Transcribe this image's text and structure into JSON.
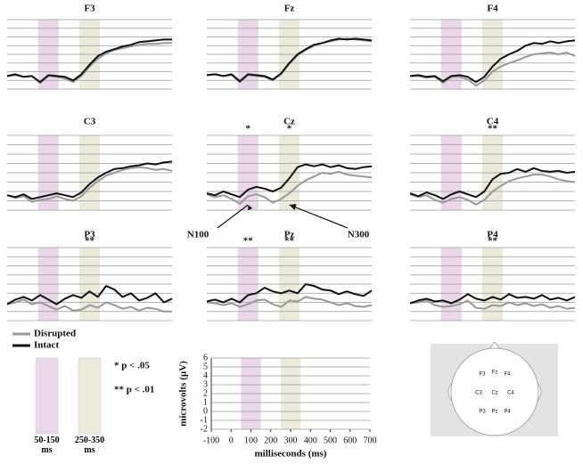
{
  "chart_data": [
    {
      "type": "line",
      "title": "F3",
      "x": [
        -100,
        -60,
        -20,
        20,
        60,
        100,
        140,
        180,
        220,
        260,
        300,
        340,
        380,
        420,
        460,
        500,
        540,
        580,
        620,
        660,
        700
      ],
      "series": [
        {
          "name": "Disrupted",
          "color": "#999999",
          "values": [
            -0.5,
            -0.4,
            -0.6,
            -0.5,
            -1.3,
            -0.5,
            -0.6,
            -0.8,
            -1.2,
            -0.5,
            0.6,
            1.5,
            2.1,
            2.5,
            2.7,
            2.9,
            3.1,
            3.2,
            3.2,
            3.3,
            3.3
          ]
        },
        {
          "name": "Intact",
          "color": "#111111",
          "values": [
            -0.5,
            -0.3,
            -0.6,
            -0.5,
            -1.2,
            -0.4,
            -0.5,
            -0.6,
            -1.0,
            -0.3,
            0.8,
            1.8,
            2.3,
            2.6,
            2.9,
            3.1,
            3.4,
            3.5,
            3.6,
            3.7,
            3.7
          ]
        }
      ]
    },
    {
      "type": "line",
      "title": "Fz",
      "x": [
        -100,
        -60,
        -20,
        20,
        60,
        100,
        140,
        180,
        220,
        260,
        300,
        340,
        380,
        420,
        460,
        500,
        540,
        580,
        620,
        660,
        700
      ],
      "series": [
        {
          "name": "Disrupted",
          "color": "#999999",
          "values": [
            -0.4,
            -0.3,
            -0.5,
            -0.4,
            -1.2,
            -0.4,
            -0.5,
            -0.6,
            -1.0,
            -0.3,
            0.9,
            1.9,
            2.5,
            3.0,
            3.3,
            3.5,
            3.7,
            3.8,
            3.7,
            3.6,
            3.5
          ]
        },
        {
          "name": "Intact",
          "color": "#111111",
          "values": [
            -0.4,
            -0.3,
            -0.5,
            -0.3,
            -1.1,
            -0.3,
            -0.4,
            -0.5,
            -0.9,
            -0.2,
            1.0,
            2.0,
            2.6,
            3.1,
            3.3,
            3.6,
            3.8,
            3.7,
            3.8,
            3.7,
            3.6
          ]
        }
      ]
    },
    {
      "type": "line",
      "title": "F4",
      "x": [
        -100,
        -60,
        -20,
        20,
        60,
        100,
        140,
        180,
        220,
        260,
        300,
        340,
        380,
        420,
        460,
        500,
        540,
        580,
        620,
        660,
        700
      ],
      "series": [
        {
          "name": "Disrupted",
          "color": "#999999",
          "values": [
            -0.5,
            -0.5,
            -0.7,
            -0.6,
            -1.3,
            -0.6,
            -0.6,
            -0.9,
            -1.6,
            -1.0,
            0.0,
            0.6,
            1.0,
            1.3,
            1.7,
            2.0,
            2.1,
            2.2,
            2.0,
            2.2,
            1.8
          ]
        },
        {
          "name": "Intact",
          "color": "#111111",
          "values": [
            -0.5,
            -0.4,
            -0.6,
            -0.5,
            -1.1,
            -0.5,
            -0.4,
            -0.6,
            -1.2,
            -0.6,
            0.6,
            1.5,
            2.0,
            2.4,
            3.0,
            3.3,
            3.2,
            3.5,
            3.3,
            3.5,
            3.6
          ]
        }
      ]
    },
    {
      "type": "line",
      "title": "C3",
      "x": [
        -100,
        -60,
        -20,
        20,
        60,
        100,
        140,
        180,
        220,
        260,
        300,
        340,
        380,
        420,
        460,
        500,
        540,
        580,
        620,
        660,
        700
      ],
      "series": [
        {
          "name": "Disrupted",
          "color": "#999999",
          "values": [
            -0.4,
            -0.7,
            -0.5,
            -1.1,
            -0.9,
            -0.8,
            -0.5,
            -0.8,
            -1.0,
            -0.5,
            0.4,
            1.1,
            1.7,
            2.0,
            2.3,
            2.5,
            2.6,
            2.5,
            2.3,
            2.4,
            2.2
          ]
        },
        {
          "name": "Intact",
          "color": "#111111",
          "values": [
            -0.4,
            -0.6,
            -0.3,
            -0.8,
            -0.6,
            -0.4,
            -0.2,
            -0.4,
            -0.6,
            -0.1,
            0.8,
            1.5,
            2.0,
            2.4,
            2.5,
            2.7,
            2.8,
            3.0,
            2.9,
            3.1,
            3.2
          ]
        }
      ]
    },
    {
      "type": "line",
      "title": "Cz",
      "significance": [
        "*",
        "*"
      ],
      "annotations": [
        "N100",
        "N300"
      ],
      "x": [
        -100,
        -60,
        -20,
        20,
        60,
        100,
        140,
        180,
        220,
        260,
        300,
        340,
        380,
        420,
        460,
        500,
        540,
        580,
        620,
        660,
        700
      ],
      "series": [
        {
          "name": "Disrupted",
          "color": "#999999",
          "values": [
            -0.3,
            -0.6,
            -0.4,
            -0.8,
            -1.3,
            -0.5,
            -0.3,
            -0.6,
            -1.2,
            -0.8,
            -0.2,
            0.6,
            1.2,
            1.6,
            2.0,
            1.9,
            2.1,
            1.8,
            1.7,
            1.6,
            1.5
          ]
        },
        {
          "name": "Intact",
          "color": "#111111",
          "values": [
            -0.2,
            -0.4,
            0.0,
            -0.3,
            -0.6,
            0.2,
            0.5,
            0.3,
            0.0,
            0.4,
            1.4,
            2.6,
            2.9,
            2.7,
            2.9,
            2.6,
            2.8,
            2.5,
            2.4,
            2.6,
            2.7
          ]
        }
      ]
    },
    {
      "type": "line",
      "title": "C4",
      "significance": [
        null,
        "**"
      ],
      "x": [
        -100,
        -60,
        -20,
        20,
        60,
        100,
        140,
        180,
        220,
        260,
        300,
        340,
        380,
        420,
        460,
        500,
        540,
        580,
        620,
        660,
        700
      ],
      "series": [
        {
          "name": "Disrupted",
          "color": "#999999",
          "values": [
            -0.3,
            -0.6,
            -0.4,
            -0.9,
            -1.2,
            -0.8,
            -0.6,
            -0.9,
            -1.4,
            -0.9,
            0.0,
            0.6,
            1.1,
            1.4,
            1.6,
            1.8,
            1.8,
            1.6,
            1.3,
            1.1,
            1.0
          ]
        },
        {
          "name": "Intact",
          "color": "#111111",
          "values": [
            -0.2,
            -0.5,
            -0.1,
            -0.4,
            -0.8,
            -0.3,
            0.0,
            -0.3,
            -0.6,
            0.0,
            1.3,
            1.9,
            2.0,
            2.4,
            2.1,
            2.5,
            2.2,
            2.1,
            2.2,
            2.0,
            2.1
          ]
        }
      ]
    },
    {
      "type": "line",
      "title": "P3",
      "significance": [
        null,
        "**"
      ],
      "x": [
        -100,
        -60,
        -20,
        20,
        60,
        100,
        140,
        180,
        220,
        260,
        300,
        340,
        380,
        420,
        460,
        500,
        540,
        580,
        620,
        660,
        700
      ],
      "series": [
        {
          "name": "Disrupted",
          "color": "#999999",
          "values": [
            -0.2,
            0.0,
            0.3,
            -0.2,
            0.0,
            -0.4,
            -0.8,
            -0.4,
            -0.9,
            -0.8,
            -0.3,
            -0.6,
            0.0,
            -0.3,
            -0.7,
            -0.5,
            -0.9,
            -0.6,
            -0.7,
            -1.0,
            -1.0
          ]
        },
        {
          "name": "Intact",
          "color": "#111111",
          "values": [
            -0.2,
            0.3,
            0.6,
            0.2,
            0.8,
            0.3,
            -0.2,
            0.4,
            0.8,
            0.5,
            1.2,
            0.6,
            1.8,
            1.4,
            0.6,
            1.0,
            0.2,
            0.5,
            1.0,
            0.0,
            0.4
          ]
        }
      ]
    },
    {
      "type": "line",
      "title": "Pz",
      "significance": [
        "**",
        "**"
      ],
      "x": [
        -100,
        -60,
        -20,
        20,
        60,
        100,
        140,
        180,
        220,
        260,
        300,
        340,
        380,
        420,
        460,
        500,
        540,
        580,
        620,
        660,
        700
      ],
      "series": [
        {
          "name": "Disrupted",
          "color": "#999999",
          "values": [
            0.0,
            -0.1,
            -0.3,
            -0.1,
            -0.5,
            -0.2,
            0.2,
            0.3,
            -0.2,
            -0.5,
            0.2,
            0.1,
            0.6,
            0.4,
            0.3,
            0.0,
            -0.3,
            -0.1,
            -0.4,
            -0.5,
            -0.3
          ]
        },
        {
          "name": "Intact",
          "color": "#111111",
          "values": [
            0.1,
            0.3,
            0.0,
            0.4,
            0.0,
            0.8,
            1.0,
            1.6,
            1.2,
            1.0,
            1.3,
            1.0,
            2.0,
            1.8,
            1.4,
            1.3,
            0.9,
            1.2,
            0.9,
            0.7,
            1.3
          ]
        }
      ]
    },
    {
      "type": "line",
      "title": "P4",
      "significance": [
        null,
        "**"
      ],
      "x": [
        -100,
        -60,
        -20,
        20,
        60,
        100,
        140,
        180,
        220,
        260,
        300,
        340,
        380,
        420,
        460,
        500,
        540,
        580,
        620,
        660,
        700
      ],
      "series": [
        {
          "name": "Disrupted",
          "color": "#999999",
          "values": [
            -0.1,
            0.0,
            0.2,
            -0.3,
            -0.5,
            -0.4,
            -0.2,
            0.2,
            -0.6,
            -0.7,
            -0.3,
            -0.4,
            0.0,
            -0.3,
            -0.1,
            -0.4,
            -0.2,
            -0.6,
            -0.4,
            -0.7,
            -0.6
          ]
        },
        {
          "name": "Intact",
          "color": "#111111",
          "values": [
            -0.1,
            0.2,
            0.4,
            0.1,
            0.2,
            -0.1,
            0.3,
            0.9,
            0.4,
            0.2,
            0.6,
            0.3,
            0.9,
            0.5,
            0.6,
            0.4,
            0.8,
            0.3,
            0.5,
            0.2,
            0.6
          ]
        }
      ]
    },
    {
      "type": "scale",
      "xlabel": "milliseconds (ms)",
      "ylabel": "microvolts (µV)",
      "xlim": [
        -100,
        700
      ],
      "xticks": [
        -100,
        0,
        100,
        200,
        300,
        400,
        500,
        600,
        700
      ],
      "ylim": [
        -2,
        6
      ],
      "yticks": [
        -2,
        -1,
        0,
        1,
        2,
        3,
        4,
        5,
        6
      ]
    }
  ],
  "windows": [
    {
      "label": "50-150 ms",
      "start": 50,
      "end": 150,
      "color": "#ead8ea"
    },
    {
      "label": "250-350 ms",
      "start": 250,
      "end": 350,
      "color": "#ecebdb"
    }
  ],
  "significance_legend": [
    "* p < .05",
    "** p < .01"
  ]
}
